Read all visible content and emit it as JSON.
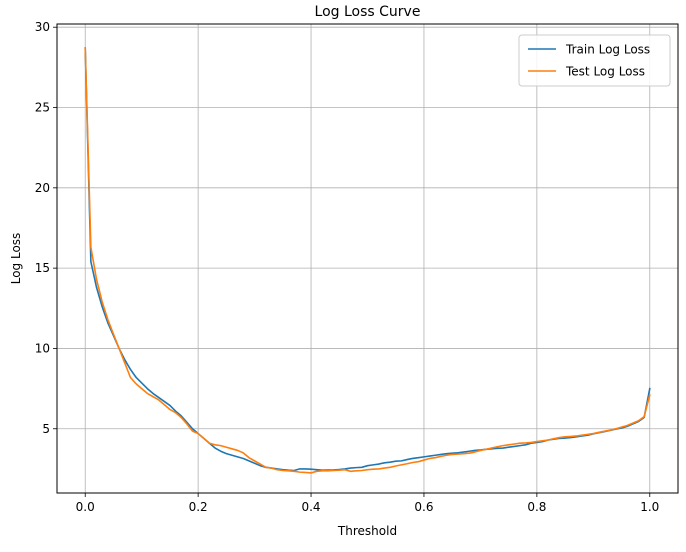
{
  "chart_data": {
    "type": "line",
    "title": "Log Loss Curve",
    "xlabel": "Threshold",
    "ylabel": "Log Loss",
    "xlim": [
      -0.05,
      1.05
    ],
    "ylim": [
      1.0,
      30.2
    ],
    "xticks": [
      0.0,
      0.2,
      0.4,
      0.6,
      0.8,
      1.0
    ],
    "xtick_labels": [
      "0.0",
      "0.2",
      "0.4",
      "0.6",
      "0.8",
      "1.0"
    ],
    "yticks": [
      5,
      10,
      15,
      20,
      25,
      30
    ],
    "ytick_labels": [
      "5",
      "10",
      "15",
      "20",
      "25",
      "30"
    ],
    "grid": true,
    "legend_position": "top-right",
    "series": [
      {
        "name": "Train Log Loss",
        "color": "#1f77b4",
        "x": [
          0.0,
          0.01,
          0.02,
          0.03,
          0.04,
          0.05,
          0.06,
          0.07,
          0.08,
          0.09,
          0.1,
          0.11,
          0.12,
          0.13,
          0.14,
          0.15,
          0.16,
          0.17,
          0.18,
          0.19,
          0.2,
          0.21,
          0.22,
          0.23,
          0.24,
          0.25,
          0.26,
          0.27,
          0.28,
          0.29,
          0.3,
          0.31,
          0.32,
          0.33,
          0.34,
          0.35,
          0.36,
          0.37,
          0.38,
          0.39,
          0.4,
          0.41,
          0.42,
          0.43,
          0.44,
          0.45,
          0.46,
          0.47,
          0.48,
          0.49,
          0.5,
          0.51,
          0.52,
          0.53,
          0.54,
          0.55,
          0.56,
          0.57,
          0.58,
          0.59,
          0.6,
          0.61,
          0.62,
          0.63,
          0.64,
          0.65,
          0.66,
          0.67,
          0.68,
          0.69,
          0.7,
          0.71,
          0.72,
          0.73,
          0.74,
          0.75,
          0.76,
          0.77,
          0.78,
          0.79,
          0.8,
          0.81,
          0.82,
          0.83,
          0.84,
          0.85,
          0.86,
          0.87,
          0.88,
          0.89,
          0.9,
          0.91,
          0.92,
          0.93,
          0.94,
          0.95,
          0.96,
          0.97,
          0.98,
          0.99,
          1.0
        ],
        "values": [
          28.7,
          15.4,
          13.8,
          12.6,
          11.6,
          10.8,
          10.0,
          9.3,
          8.7,
          8.2,
          7.85,
          7.5,
          7.2,
          6.95,
          6.7,
          6.45,
          6.1,
          5.8,
          5.4,
          5.0,
          4.7,
          4.4,
          4.1,
          3.8,
          3.6,
          3.45,
          3.35,
          3.25,
          3.15,
          3.0,
          2.85,
          2.7,
          2.6,
          2.55,
          2.5,
          2.45,
          2.42,
          2.4,
          2.5,
          2.5,
          2.48,
          2.45,
          2.42,
          2.43,
          2.44,
          2.46,
          2.5,
          2.55,
          2.58,
          2.6,
          2.7,
          2.75,
          2.8,
          2.88,
          2.92,
          2.98,
          3.0,
          3.08,
          3.15,
          3.2,
          3.25,
          3.3,
          3.35,
          3.4,
          3.45,
          3.48,
          3.5,
          3.55,
          3.6,
          3.65,
          3.68,
          3.72,
          3.75,
          3.78,
          3.8,
          3.85,
          3.9,
          3.95,
          4.0,
          4.1,
          4.15,
          4.2,
          4.3,
          4.35,
          4.4,
          4.42,
          4.45,
          4.5,
          4.55,
          4.6,
          4.68,
          4.75,
          4.82,
          4.9,
          4.98,
          5.05,
          5.15,
          5.3,
          5.45,
          5.7,
          7.5
        ]
      },
      {
        "name": "Test Log Loss",
        "color": "#ff7f0e",
        "x": [
          0.0,
          0.01,
          0.02,
          0.03,
          0.04,
          0.05,
          0.06,
          0.07,
          0.08,
          0.09,
          0.1,
          0.11,
          0.12,
          0.13,
          0.14,
          0.15,
          0.16,
          0.17,
          0.18,
          0.19,
          0.2,
          0.21,
          0.22,
          0.23,
          0.24,
          0.25,
          0.26,
          0.27,
          0.28,
          0.29,
          0.3,
          0.31,
          0.32,
          0.33,
          0.34,
          0.35,
          0.36,
          0.37,
          0.38,
          0.39,
          0.4,
          0.41,
          0.42,
          0.43,
          0.44,
          0.45,
          0.46,
          0.47,
          0.48,
          0.49,
          0.5,
          0.51,
          0.52,
          0.53,
          0.54,
          0.55,
          0.56,
          0.57,
          0.58,
          0.59,
          0.6,
          0.61,
          0.62,
          0.63,
          0.64,
          0.65,
          0.66,
          0.67,
          0.68,
          0.69,
          0.7,
          0.71,
          0.72,
          0.73,
          0.74,
          0.75,
          0.76,
          0.77,
          0.78,
          0.79,
          0.8,
          0.81,
          0.82,
          0.83,
          0.84,
          0.85,
          0.86,
          0.87,
          0.88,
          0.89,
          0.9,
          0.91,
          0.92,
          0.93,
          0.94,
          0.95,
          0.96,
          0.97,
          0.98,
          0.99,
          1.0
        ],
        "values": [
          28.7,
          16.3,
          14.3,
          12.9,
          11.8,
          10.9,
          10.0,
          9.1,
          8.2,
          7.8,
          7.5,
          7.2,
          7.0,
          6.8,
          6.5,
          6.2,
          6.0,
          5.7,
          5.3,
          4.85,
          4.7,
          4.4,
          4.1,
          4.0,
          3.95,
          3.85,
          3.75,
          3.65,
          3.5,
          3.2,
          3.0,
          2.8,
          2.6,
          2.55,
          2.45,
          2.4,
          2.38,
          2.35,
          2.3,
          2.28,
          2.25,
          2.35,
          2.38,
          2.38,
          2.4,
          2.42,
          2.45,
          2.35,
          2.38,
          2.4,
          2.45,
          2.48,
          2.5,
          2.55,
          2.6,
          2.68,
          2.75,
          2.82,
          2.9,
          2.95,
          3.05,
          3.15,
          3.2,
          3.28,
          3.35,
          3.4,
          3.42,
          3.45,
          3.48,
          3.55,
          3.65,
          3.72,
          3.8,
          3.88,
          3.95,
          4.0,
          4.05,
          4.1,
          4.12,
          4.15,
          4.2,
          4.25,
          4.3,
          4.38,
          4.45,
          4.5,
          4.52,
          4.55,
          4.6,
          4.65,
          4.7,
          4.78,
          4.85,
          4.92,
          5.0,
          5.1,
          5.2,
          5.35,
          5.5,
          5.75,
          7.1
        ]
      }
    ]
  }
}
